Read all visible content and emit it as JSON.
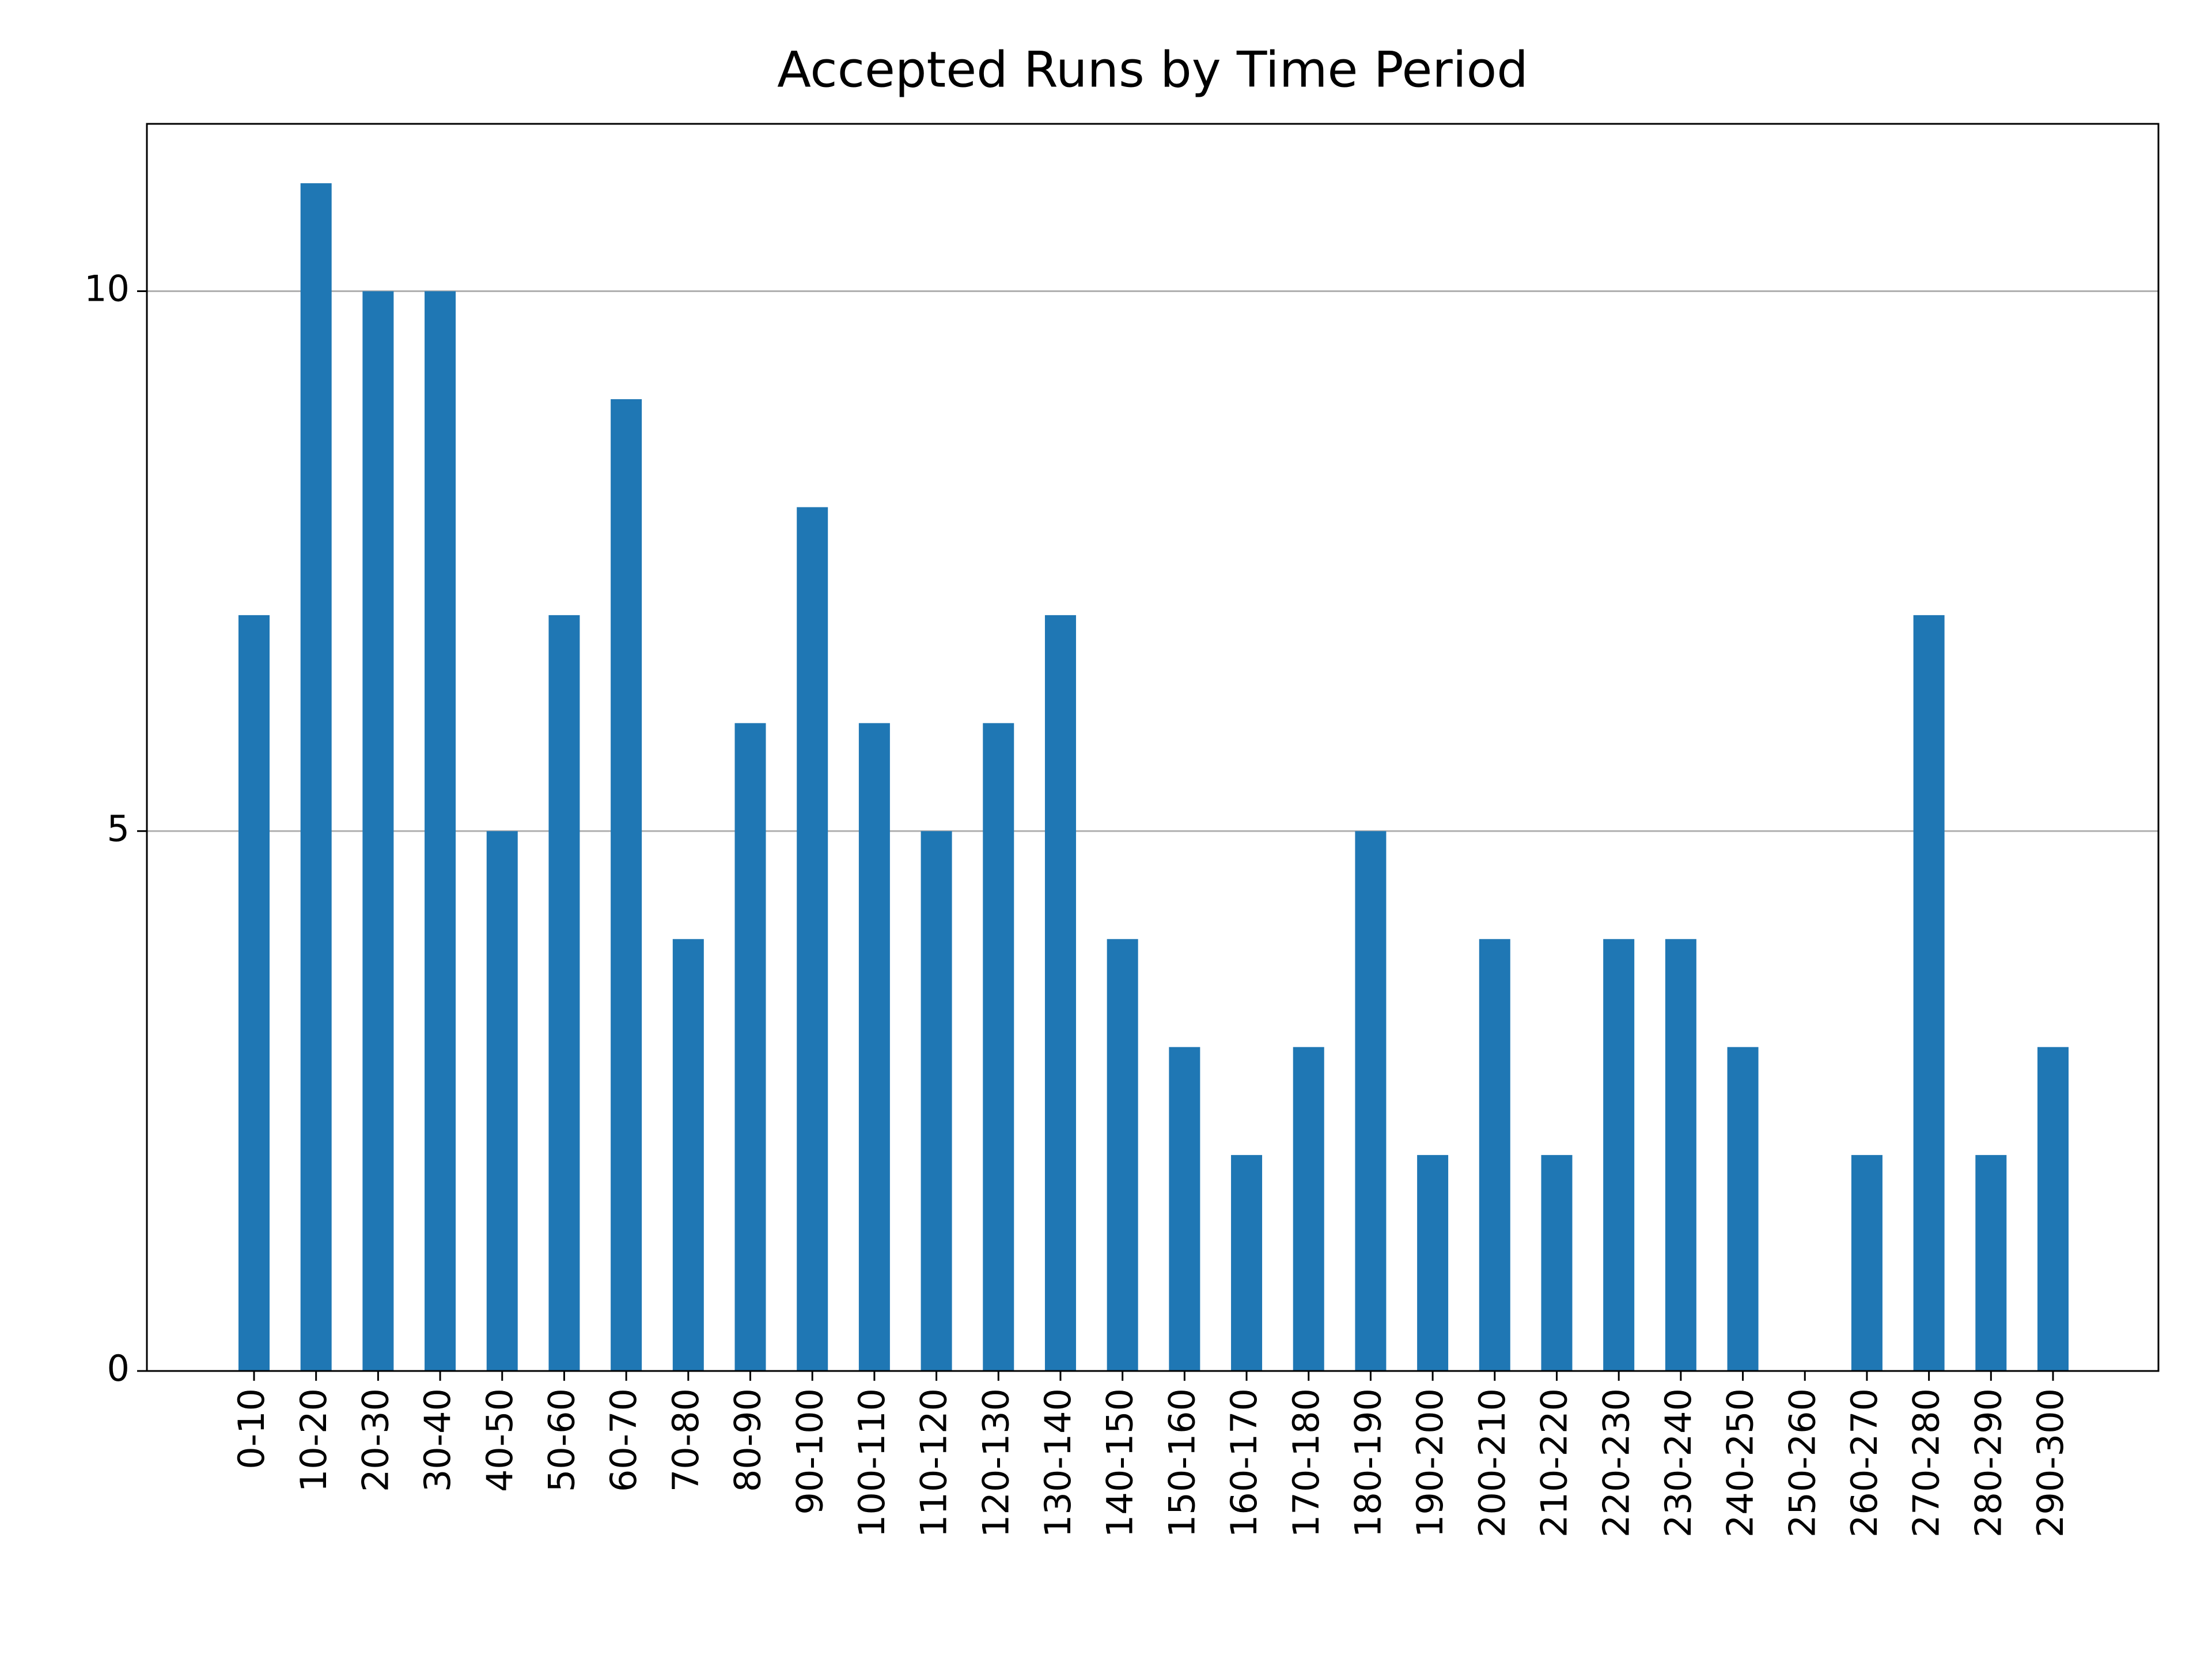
{
  "chart_data": {
    "type": "bar",
    "title": "Accepted Runs by Time Period",
    "categories": [
      "0-10",
      "10-20",
      "20-30",
      "30-40",
      "40-50",
      "50-60",
      "60-70",
      "70-80",
      "80-90",
      "90-100",
      "100-110",
      "110-120",
      "120-130",
      "130-140",
      "140-150",
      "150-160",
      "160-170",
      "170-180",
      "180-190",
      "190-200",
      "200-210",
      "210-220",
      "220-230",
      "230-240",
      "240-250",
      "250-260",
      "260-270",
      "270-280",
      "280-290",
      "290-300"
    ],
    "values": [
      7,
      11,
      10,
      10,
      5,
      7,
      9,
      4,
      6,
      8,
      6,
      5,
      6,
      7,
      4,
      3,
      2,
      3,
      5,
      2,
      4,
      2,
      4,
      4,
      3,
      0,
      2,
      7,
      2,
      3
    ],
    "color": "#1f77b4",
    "ylim": [
      0,
      11.55
    ],
    "yticks": [
      0,
      5,
      10
    ],
    "grid": true
  }
}
